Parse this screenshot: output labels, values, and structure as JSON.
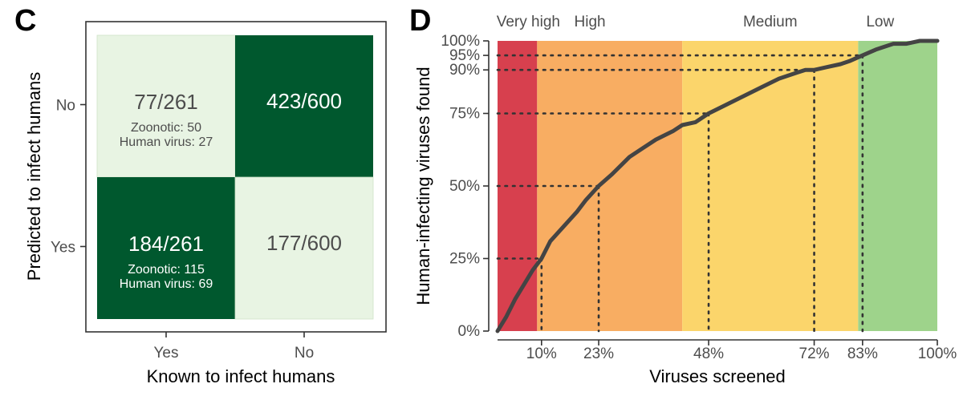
{
  "chart_data": [
    {
      "panel": "C",
      "type": "heatmap",
      "xlabel": "Known to infect humans",
      "ylabel": "Predicted to infect humans",
      "x_categories": [
        "Yes",
        "No"
      ],
      "y_categories": [
        "No",
        "Yes"
      ],
      "colors": {
        "dark": "#00582e",
        "light": "#e8f4e3",
        "frame": "#333333"
      },
      "cells": [
        {
          "row": "No",
          "col": "Yes",
          "label": "77/261",
          "lines": [
            "Zoonotic: 50",
            "Human virus: 27"
          ],
          "shade": "light"
        },
        {
          "row": "No",
          "col": "No",
          "label": "423/600",
          "lines": [],
          "shade": "dark"
        },
        {
          "row": "Yes",
          "col": "Yes",
          "label": "184/261",
          "lines": [
            "Zoonotic: 115",
            "Human virus: 69"
          ],
          "shade": "dark"
        },
        {
          "row": "Yes",
          "col": "No",
          "label": "177/600",
          "lines": [],
          "shade": "light"
        }
      ]
    },
    {
      "panel": "D",
      "type": "line",
      "xlabel": "Viruses screened",
      "ylabel": "Human-infecting viruses found",
      "xlim": [
        0,
        100
      ],
      "ylim": [
        0,
        100
      ],
      "x_ticks": [
        10,
        23,
        48,
        72,
        83,
        100
      ],
      "x_tick_labels": [
        "10%",
        "23%",
        "48%",
        "72%",
        "83%",
        "100%"
      ],
      "y_ticks": [
        0,
        25,
        50,
        75,
        90,
        95,
        100
      ],
      "y_tick_labels": [
        "0%",
        "25%",
        "50%",
        "75%",
        "90%",
        "95%",
        "100%"
      ],
      "bands": [
        {
          "label": "Very high",
          "from": 0,
          "to": 9,
          "color": "#d7404e"
        },
        {
          "label": "High",
          "from": 9,
          "to": 42,
          "color": "#f8ad62"
        },
        {
          "label": "Medium",
          "from": 42,
          "to": 82,
          "color": "#fbd56b"
        },
        {
          "label": "Low",
          "from": 82,
          "to": 100,
          "color": "#9ed38b"
        }
      ],
      "band_label_positions": [
        7,
        21,
        62,
        87
      ],
      "line_color": "#444444",
      "reference_lines": [
        {
          "x": 10,
          "y": 25
        },
        {
          "x": 23,
          "y": 50
        },
        {
          "x": 48,
          "y": 75
        },
        {
          "x": 72,
          "y": 90
        },
        {
          "x": 83,
          "y": 95
        }
      ],
      "series": [
        {
          "name": "Human-infecting viruses found",
          "x": [
            0,
            2,
            4,
            6,
            8,
            10,
            12,
            15,
            18,
            20,
            23,
            26,
            30,
            33,
            36,
            40,
            42,
            45,
            48,
            52,
            56,
            60,
            64,
            68,
            70,
            72,
            75,
            78,
            80,
            83,
            86,
            88,
            90,
            93,
            96,
            98,
            100
          ],
          "y": [
            0,
            5,
            11,
            16,
            21,
            25,
            31,
            36,
            41,
            45,
            50,
            54,
            60,
            63,
            66,
            69,
            71,
            72,
            75,
            78,
            81,
            84,
            87,
            89,
            90,
            90,
            91,
            92,
            93,
            95,
            97,
            98,
            99,
            99,
            100,
            100,
            100
          ]
        }
      ]
    }
  ]
}
